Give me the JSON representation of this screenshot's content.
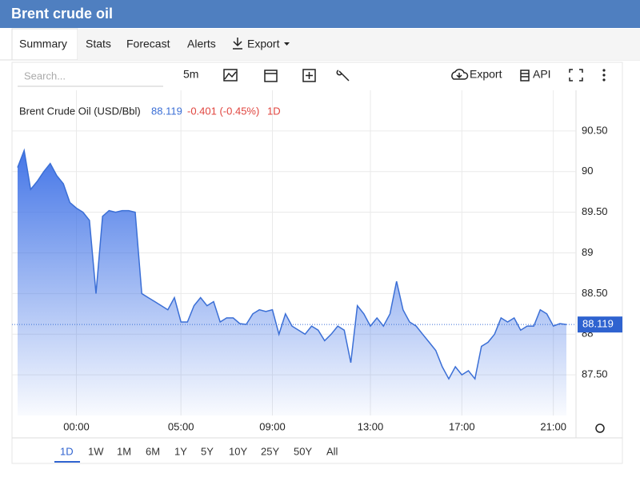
{
  "header": {
    "title": "Brent crude oil"
  },
  "tabs": [
    "Summary",
    "Stats",
    "Forecast",
    "Alerts"
  ],
  "export_menu": "Export",
  "toolbar": {
    "search": "Search...",
    "interval": "5m",
    "export": "Export",
    "api": "API"
  },
  "ranges": [
    "1D",
    "1W",
    "1M",
    "6M",
    "1Y",
    "5Y",
    "10Y",
    "25Y",
    "50Y",
    "All"
  ],
  "chart_data": {
    "type": "area",
    "legend_title": "Brent Crude Oil (USD/Bbl)",
    "change": "-0.401 (-0.45%)",
    "period": "1D",
    "categories": [
      null,
      null,
      null,
      null,
      null,
      null,
      null,
      null,
      null,
      "00:00",
      null,
      null,
      null,
      null,
      null,
      null,
      null,
      null,
      null,
      null,
      null,
      null,
      null,
      null,
      null,
      "05:00",
      null,
      null,
      null,
      null,
      null,
      null,
      null,
      null,
      null,
      null,
      null,
      null,
      null,
      "09:00",
      null,
      null,
      null,
      null,
      null,
      null,
      null,
      null,
      null,
      null,
      null,
      null,
      null,
      null,
      "13:00",
      null,
      null,
      null,
      null,
      null,
      null,
      null,
      null,
      null,
      null,
      null,
      null,
      null,
      "17:00",
      null,
      null,
      null,
      null,
      null,
      null,
      null,
      null,
      null,
      null,
      null,
      null,
      null,
      "21:00",
      null,
      null
    ],
    "series": [
      {
        "name": "Brent Crude Oil",
        "color": "#3b6fd6",
        "values": [
          90.05,
          90.26,
          89.78,
          89.88,
          90.0,
          90.1,
          89.95,
          89.85,
          89.62,
          89.55,
          89.5,
          89.4,
          88.5,
          89.45,
          89.52,
          89.5,
          89.52,
          89.52,
          89.5,
          88.5,
          88.45,
          88.4,
          88.35,
          88.3,
          88.45,
          88.15,
          88.15,
          88.35,
          88.45,
          88.35,
          88.4,
          88.15,
          88.2,
          88.2,
          88.13,
          88.12,
          88.25,
          88.3,
          88.28,
          88.3,
          88.0,
          88.25,
          88.1,
          88.05,
          88.0,
          88.1,
          88.05,
          87.92,
          88.0,
          88.1,
          88.05,
          87.65,
          88.35,
          88.25,
          88.1,
          88.2,
          88.1,
          88.25,
          88.65,
          88.3,
          88.15,
          88.1,
          88.0,
          87.9,
          87.8,
          87.6,
          87.45,
          87.6,
          87.5,
          87.55,
          87.45,
          87.85,
          87.9,
          88.0,
          88.2,
          88.15,
          88.2,
          88.05,
          88.1,
          88.1,
          88.3,
          88.25,
          88.1,
          88.13,
          88.119
        ]
      }
    ],
    "ylim": [
      87,
      91
    ],
    "yticks": [
      {
        "value": 87.5,
        "label": "87.50"
      },
      88,
      {
        "value": 88.5,
        "label": "88.50"
      },
      89,
      {
        "value": 89.5,
        "label": "89.50"
      },
      90,
      {
        "value": 90.5,
        "label": "90.50"
      }
    ],
    "grid": true
  }
}
